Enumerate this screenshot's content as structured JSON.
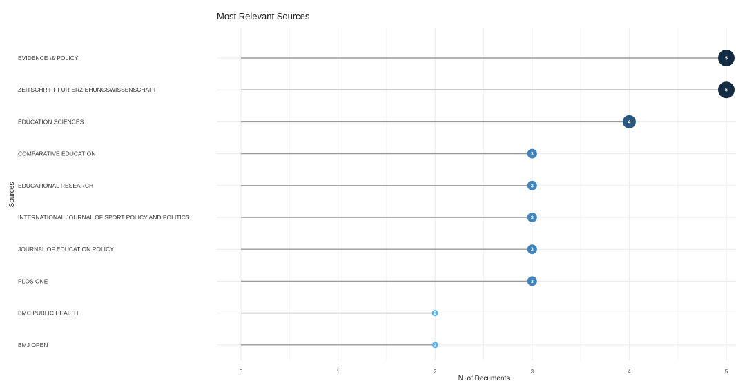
{
  "chart_data": {
    "type": "lollipop",
    "title": "Most Relevant Sources",
    "xlabel": "N. of Documents",
    "ylabel": "Sources",
    "xlim": [
      0,
      5
    ],
    "x_ticks": [
      "0",
      "1",
      "2",
      "3",
      "4",
      "5"
    ],
    "grid": true,
    "categories": [
      "EVIDENCE \\& POLICY",
      "ZEITSCHRIFT FUR ERZIEHUNGSWISSENSCHAFT",
      "EDUCATION SCIENCES",
      "COMPARATIVE EDUCATION",
      "EDUCATIONAL RESEARCH",
      "INTERNATIONAL JOURNAL OF SPORT POLICY AND POLITICS",
      "JOURNAL OF EDUCATION POLICY",
      "PLOS ONE",
      "BMC PUBLIC HEALTH",
      "BMJ OPEN"
    ],
    "values": [
      5,
      5,
      4,
      3,
      3,
      3,
      3,
      3,
      2,
      2
    ],
    "value_labels": [
      "5",
      "5",
      "4",
      "3",
      "3",
      "3",
      "3",
      "3",
      "2",
      "2"
    ],
    "color_scale": {
      "low": "#56b1f7",
      "high": "#132b43"
    }
  }
}
